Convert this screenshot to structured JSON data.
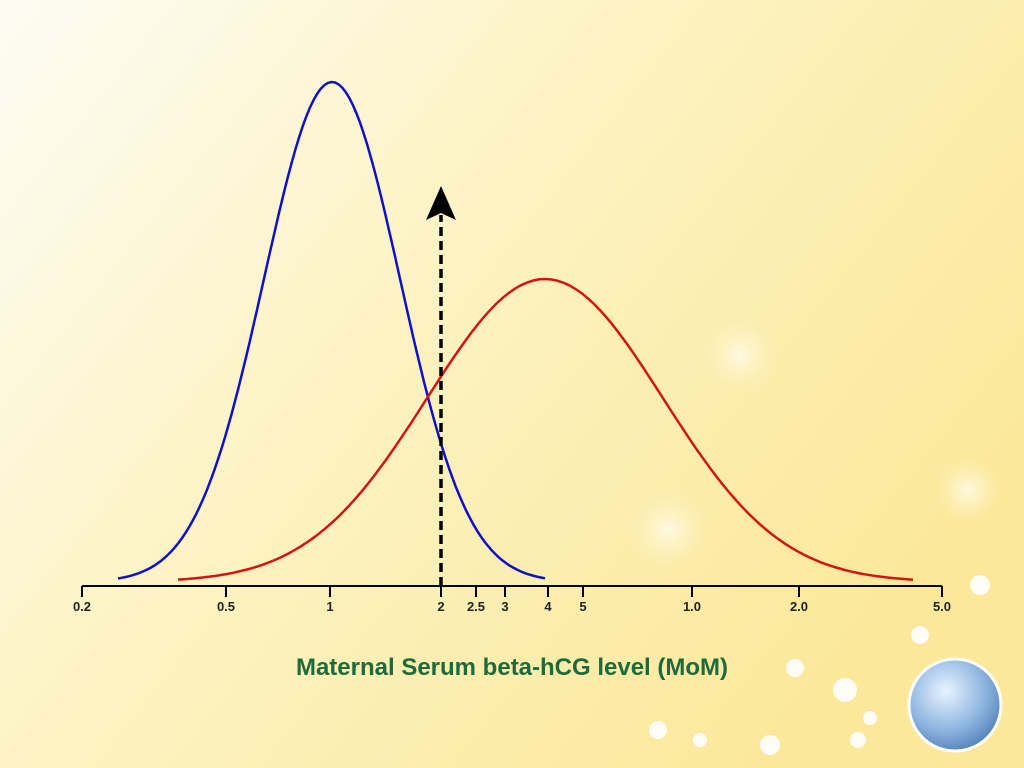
{
  "axis": {
    "ticks": [
      "0.2",
      "0.5",
      "1",
      "2",
      "2.5",
      "3",
      "4",
      "5",
      "1.0",
      "2.0",
      "5.0"
    ],
    "title": "Maternal Serum beta-hCG level (MoM)"
  }
}
